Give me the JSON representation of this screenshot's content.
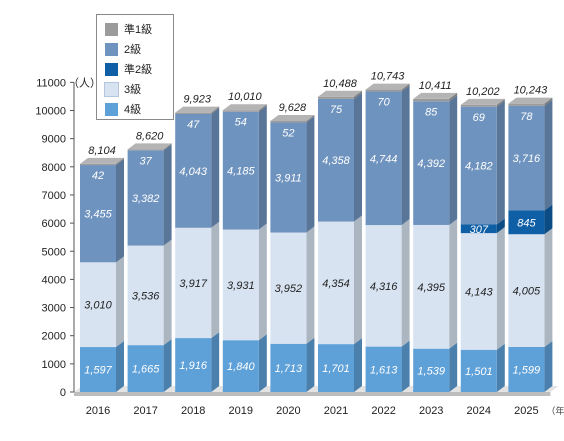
{
  "chart_data": {
    "type": "bar",
    "stacked": true,
    "three_d": true,
    "categories": [
      "2016",
      "2017",
      "2018",
      "2019",
      "2020",
      "2021",
      "2022",
      "2023",
      "2024",
      "2025"
    ],
    "x_unit_label": "（年度）",
    "y_unit_label": "（人）",
    "ylim": [
      0,
      11000
    ],
    "yticks": [
      "0",
      "1000",
      "2000",
      "3000",
      "4000",
      "5000",
      "6000",
      "7000",
      "8000",
      "9000",
      "10000",
      "11000"
    ],
    "grid": false,
    "legend_position": "top-left",
    "series": [
      {
        "name": "4級",
        "color": "#5ea0d8",
        "values": [
          1597,
          1665,
          1916,
          1840,
          1713,
          1701,
          1613,
          1539,
          1501,
          1599
        ],
        "labels": [
          "1,597",
          "1,665",
          "1,916",
          "1,840",
          "1,713",
          "1,701",
          "1,613",
          "1,539",
          "1,501",
          "1,599"
        ]
      },
      {
        "name": "3級",
        "color": "#d7e3f1",
        "values": [
          3010,
          3536,
          3917,
          3931,
          3952,
          4354,
          4316,
          4395,
          4143,
          4005
        ],
        "labels": [
          "3,010",
          "3,536",
          "3,917",
          "3,931",
          "3,952",
          "4,354",
          "4,316",
          "4,395",
          "4,143",
          "4,005"
        ]
      },
      {
        "name": "準2級",
        "color": "#0f5fa6",
        "values": [
          0,
          0,
          0,
          0,
          0,
          0,
          0,
          0,
          307,
          845
        ],
        "labels": [
          "",
          "",
          "",
          "",
          "",
          "",
          "",
          "",
          "307",
          "845"
        ]
      },
      {
        "name": "2級",
        "color": "#6f93bf",
        "values": [
          3455,
          3382,
          4043,
          4185,
          3911,
          4358,
          4744,
          4392,
          4182,
          3716
        ],
        "labels": [
          "3,455",
          "3,382",
          "4,043",
          "4,185",
          "3,911",
          "4,358",
          "4,744",
          "4,392",
          "4,182",
          "3,716"
        ]
      },
      {
        "name": "準1級",
        "color": "#9b9b9b",
        "values": [
          42,
          37,
          47,
          54,
          52,
          75,
          70,
          85,
          69,
          78
        ],
        "labels": [
          "42",
          "37",
          "47",
          "54",
          "52",
          "75",
          "70",
          "85",
          "69",
          "78"
        ]
      }
    ],
    "totals": [
      8104,
      8620,
      9923,
      10010,
      9628,
      10488,
      10743,
      10411,
      10202,
      10243
    ],
    "total_labels": [
      "8,104",
      "8,620",
      "9,923",
      "10,010",
      "9,628",
      "10,488",
      "10,743",
      "10,411",
      "10,202",
      "10,243"
    ]
  },
  "legend": {
    "items": [
      {
        "label": "準1級",
        "color": "#9b9b9b"
      },
      {
        "label": "2級",
        "color": "#6f93bf"
      },
      {
        "label": "準2級",
        "color": "#0f5fa6"
      },
      {
        "label": "3級",
        "color": "#d7e3f1"
      },
      {
        "label": "4級",
        "color": "#5ea0d8"
      }
    ]
  }
}
